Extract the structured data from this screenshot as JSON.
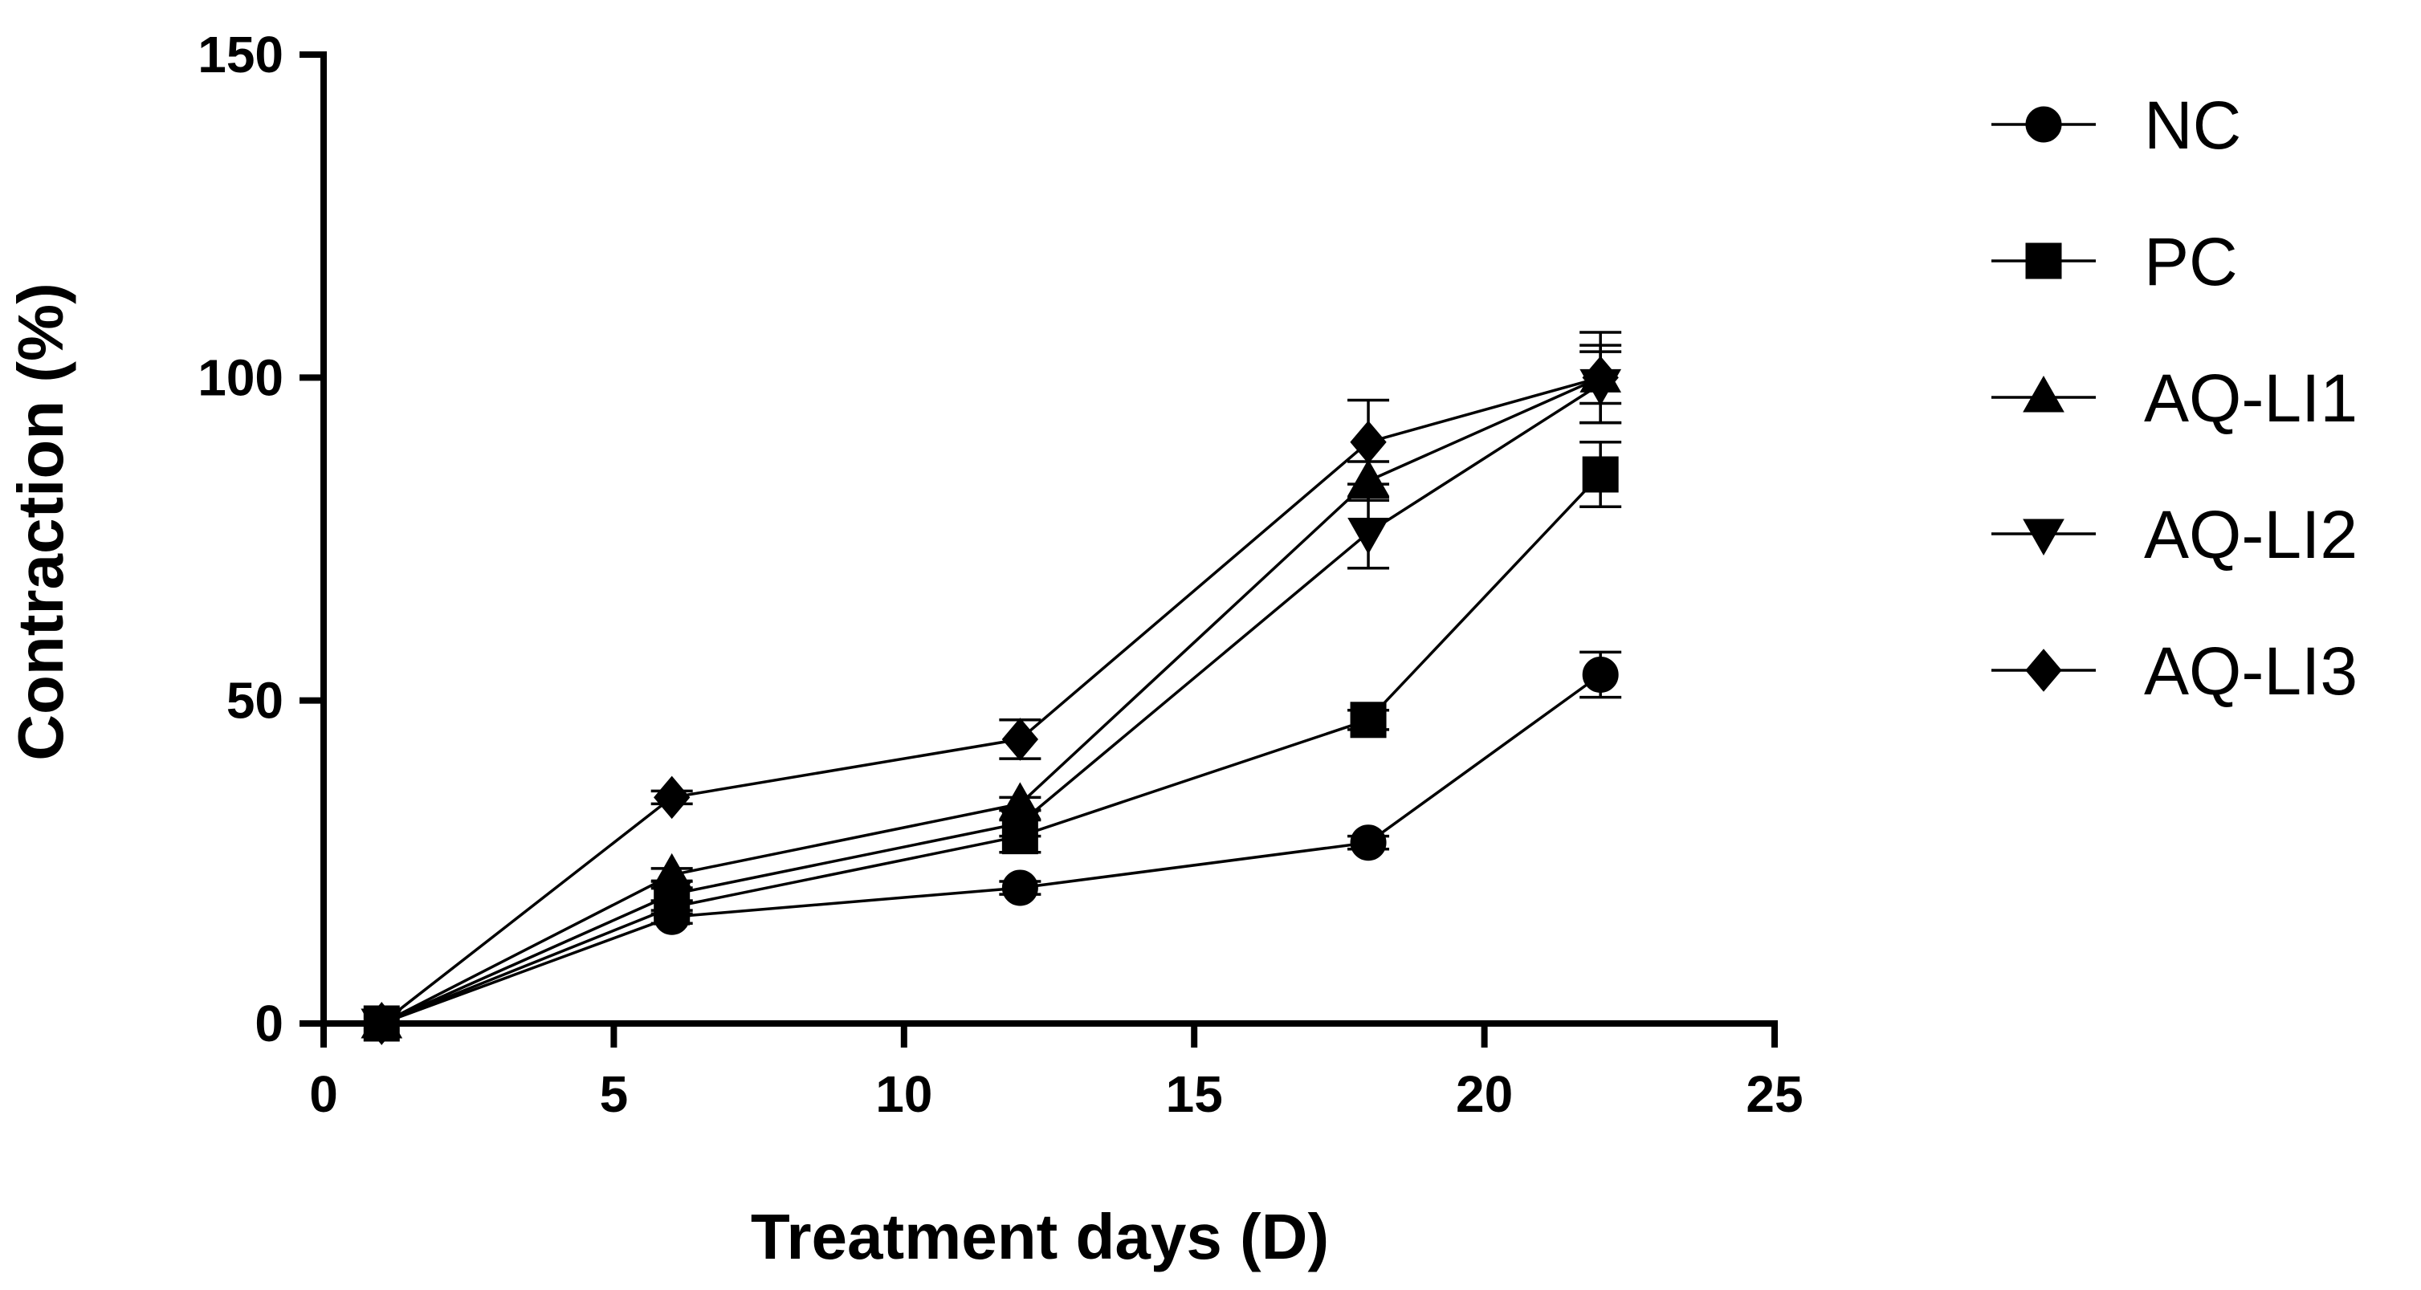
{
  "chart_data": {
    "type": "line",
    "title": "",
    "xlabel": "Treatment days (D)",
    "ylabel": "Contraction (%)",
    "xlim": [
      0,
      25
    ],
    "ylim": [
      0,
      150
    ],
    "xticks": [
      0,
      5,
      10,
      15,
      20,
      25
    ],
    "yticks": [
      0,
      50,
      100,
      150
    ],
    "grid": false,
    "legend_position": "right",
    "x": [
      1,
      6,
      12,
      18,
      22
    ],
    "series": [
      {
        "name": "NC",
        "marker": "circle",
        "values": [
          0,
          16.5,
          21,
          28,
          54
        ],
        "errors": [
          0,
          1,
          1,
          1,
          3.5
        ]
      },
      {
        "name": "PC",
        "marker": "square",
        "values": [
          0,
          18,
          29,
          47,
          85
        ],
        "errors": [
          0,
          1,
          2.5,
          1.5,
          5
        ]
      },
      {
        "name": "AQ-LI1",
        "marker": "triangle-up",
        "values": [
          0,
          23,
          34,
          84,
          100
        ],
        "errors": [
          0,
          1,
          1,
          3,
          4
        ]
      },
      {
        "name": "AQ-LI2",
        "marker": "triangle-down",
        "values": [
          0,
          20,
          31,
          76,
          99
        ],
        "errors": [
          0,
          1,
          2,
          5.5,
          6
        ]
      },
      {
        "name": "AQ-LI3",
        "marker": "diamond",
        "values": [
          0,
          35,
          44,
          90,
          100
        ],
        "errors": [
          0,
          1,
          3,
          6.5,
          7
        ]
      }
    ]
  }
}
